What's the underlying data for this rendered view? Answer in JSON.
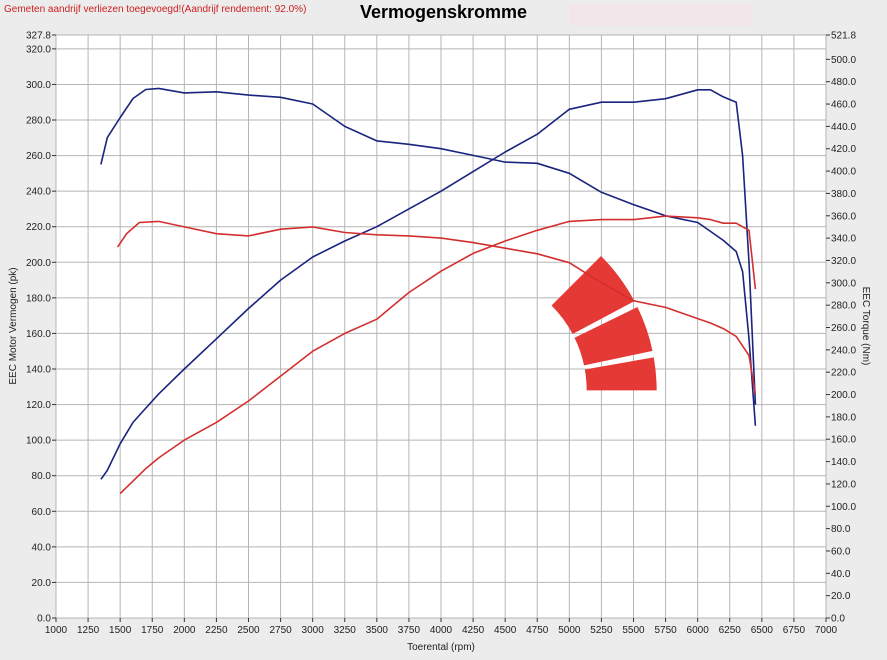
{
  "header": {
    "note": "Gemeten aandrijf verliezen toegevoegd!(Aandrijf rendement: 92.0%)",
    "title": "Vermogenskromme"
  },
  "colors": {
    "background": "#ececec",
    "plot_background": "#ffffff",
    "grid": "#b5b5b5",
    "power_series": "#1a237e",
    "torque_series": "#d32f2f",
    "logo": "#e53935"
  },
  "chart_data": {
    "type": "line",
    "title": "Vermogenskromme",
    "xlabel": "Toerental (rpm)",
    "ylabel_left": "EEC Motor Vermogen (pk)",
    "ylabel_right": "EEC Torque (Nm)",
    "xlim": [
      1000,
      7000
    ],
    "ylim_left": [
      0,
      327.8
    ],
    "ylim_right": [
      0,
      521.8
    ],
    "x_ticks": [
      "1000",
      "1250",
      "1500",
      "1750",
      "2000",
      "2250",
      "2500",
      "2750",
      "3000",
      "3250",
      "3500",
      "3750",
      "4000",
      "4250",
      "4500",
      "4750",
      "5000",
      "5250",
      "5500",
      "5750",
      "6000",
      "6250",
      "6500",
      "6750",
      "7000"
    ],
    "y_left_ticks": [
      "0.0",
      "20.0",
      "40.0",
      "60.0",
      "80.0",
      "100.0",
      "120.0",
      "140.0",
      "160.0",
      "180.0",
      "200.0",
      "220.0",
      "240.0",
      "260.0",
      "280.0",
      "300.0",
      "320.0",
      "327.8"
    ],
    "y_right_ticks": [
      "0.0",
      "20.0",
      "40.0",
      "60.0",
      "80.0",
      "100.0",
      "120.0",
      "140.0",
      "160.0",
      "180.0",
      "200.0",
      "220.0",
      "240.0",
      "260.0",
      "280.0",
      "300.0",
      "320.0",
      "340.0",
      "360.0",
      "380.0",
      "400.0",
      "420.0",
      "440.0",
      "460.0",
      "480.0",
      "500.0",
      "521.8"
    ],
    "grid": true,
    "series": [
      {
        "color": "#1a237e",
        "axis": "left",
        "x": [
          1350,
          1400,
          1500,
          1600,
          1700,
          1800,
          2000,
          2250,
          2500,
          2750,
          3000,
          3250,
          3500,
          3750,
          4000,
          4250,
          4500,
          4750,
          5000,
          5250,
          5500,
          5750,
          6000,
          6100,
          6200,
          6300,
          6350,
          6400,
          6450
        ],
        "y": [
          78,
          83,
          98,
          110,
          118,
          126,
          140,
          157,
          174,
          190,
          203,
          212,
          220,
          230,
          240,
          251,
          262,
          272,
          286,
          290,
          290,
          292,
          297,
          297,
          293,
          290,
          260,
          200,
          120
        ]
      },
      {
        "color": "#1a237e",
        "axis": "right",
        "x": [
          1350,
          1400,
          1500,
          1600,
          1700,
          1800,
          2000,
          2250,
          2500,
          2750,
          3000,
          3250,
          3500,
          3750,
          4000,
          4250,
          4500,
          4750,
          5000,
          5250,
          5500,
          5750,
          6000,
          6100,
          6200,
          6300,
          6350,
          6400,
          6450
        ],
        "y": [
          406,
          430,
          448,
          465,
          473,
          474,
          470,
          471,
          468,
          466,
          460,
          440,
          427,
          424,
          420,
          414,
          408,
          407,
          398,
          381,
          370,
          360,
          354,
          346,
          338,
          328,
          310,
          250,
          172
        ]
      },
      {
        "color": "#d32f2f",
        "axis": "left",
        "x": [
          1500,
          1600,
          1700,
          1800,
          2000,
          2250,
          2500,
          2750,
          3000,
          3250,
          3500,
          3750,
          4000,
          4250,
          4500,
          4750,
          5000,
          5250,
          5500,
          5750,
          6000,
          6100,
          6200,
          6300,
          6400,
          6450
        ],
        "y": [
          70,
          77,
          84,
          90,
          100,
          110,
          122,
          136,
          150,
          160,
          168,
          183,
          195,
          205,
          212,
          218,
          223,
          224,
          224,
          226,
          225,
          224,
          222,
          222,
          218,
          185
        ]
      },
      {
        "color": "#d32f2f",
        "axis": "right",
        "x": [
          1480,
          1550,
          1650,
          1800,
          2000,
          2250,
          2500,
          2750,
          3000,
          3250,
          3500,
          3750,
          4000,
          4250,
          4500,
          4750,
          5000,
          5250,
          5500,
          5750,
          6000,
          6100,
          6200,
          6300,
          6400,
          6450
        ],
        "y": [
          332,
          344,
          354,
          355,
          350,
          344,
          342,
          348,
          350,
          345,
          343,
          342,
          340,
          336,
          331,
          326,
          318,
          300,
          284,
          278,
          268,
          264,
          259,
          252,
          235,
          200
        ]
      }
    ]
  }
}
